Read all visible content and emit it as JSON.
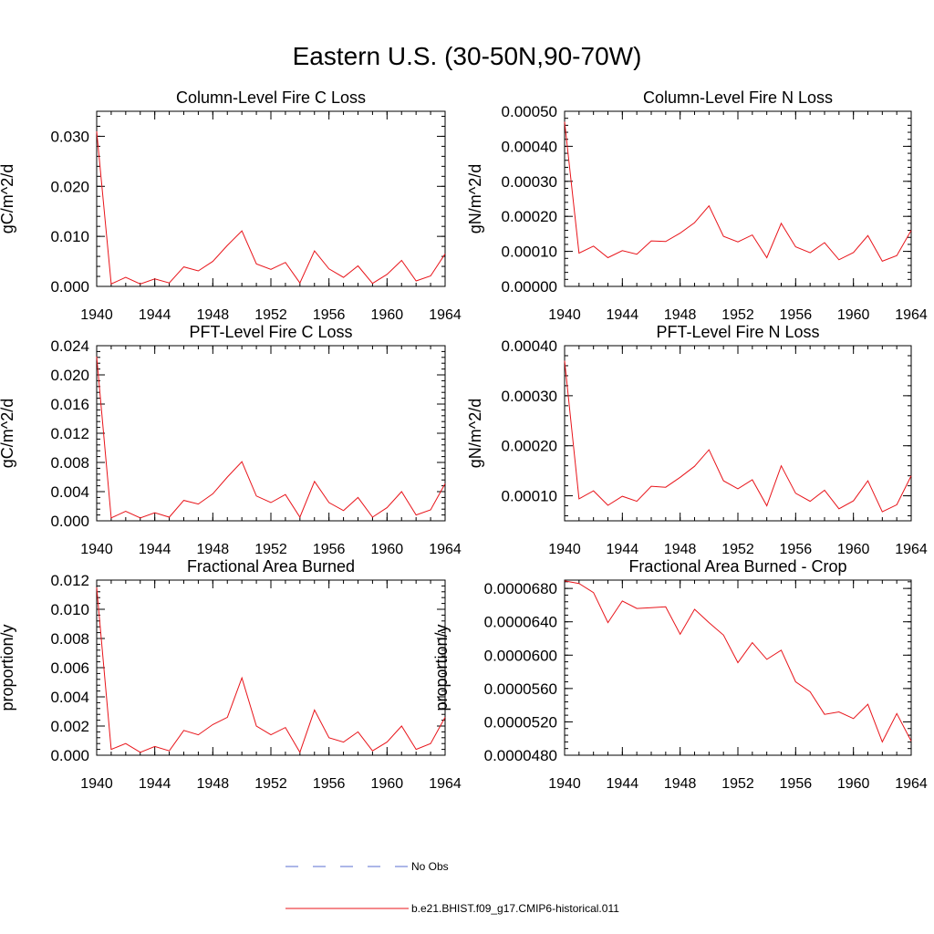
{
  "title": "Eastern U.S. (30-50N,90-70W)",
  "chart_data": [
    {
      "type": "line",
      "title": "Column-Level Fire C Loss",
      "ylabel": "gC/m^2/d",
      "xlim": [
        1940,
        1964
      ],
      "ylim": [
        0,
        0.035
      ],
      "xticks": [
        1940,
        1944,
        1948,
        1952,
        1956,
        1960,
        1964
      ],
      "yticks": [
        0.0,
        0.01,
        0.02,
        0.03
      ],
      "ytick_labels": [
        "0.000",
        "0.010",
        "0.020",
        "0.030"
      ],
      "x": [
        1940,
        1941,
        1942,
        1943,
        1944,
        1945,
        1946,
        1947,
        1948,
        1949,
        1950,
        1951,
        1952,
        1953,
        1954,
        1955,
        1956,
        1957,
        1958,
        1959,
        1960,
        1961,
        1962,
        1963,
        1964
      ],
      "series": [
        {
          "name": "b.e21.BHIST.f09_g17.CMIP6-historical.011",
          "values": [
            0.031,
            0.0005,
            0.0018,
            0.0005,
            0.0015,
            0.0007,
            0.0039,
            0.0031,
            0.005,
            0.0082,
            0.0111,
            0.0045,
            0.0034,
            0.0048,
            0.0007,
            0.0071,
            0.0035,
            0.0018,
            0.0041,
            0.0006,
            0.0024,
            0.0052,
            0.0011,
            0.0021,
            0.0065
          ]
        }
      ]
    },
    {
      "type": "line",
      "title": "Column-Level Fire N Loss",
      "ylabel": "gN/m^2/d",
      "xlim": [
        1940,
        1964
      ],
      "ylim": [
        0,
        0.0005
      ],
      "xticks": [
        1940,
        1944,
        1948,
        1952,
        1956,
        1960,
        1964
      ],
      "yticks": [
        0,
        0.0001,
        0.0002,
        0.0003,
        0.0004,
        0.0005
      ],
      "ytick_labels": [
        "0.00000",
        "0.00010",
        "0.00020",
        "0.00030",
        "0.00040",
        "0.00050"
      ],
      "x": [
        1940,
        1941,
        1942,
        1943,
        1944,
        1945,
        1946,
        1947,
        1948,
        1949,
        1950,
        1951,
        1952,
        1953,
        1954,
        1955,
        1956,
        1957,
        1958,
        1959,
        1960,
        1961,
        1962,
        1963,
        1964
      ],
      "series": [
        {
          "name": "b.e21.BHIST.f09_g17.CMIP6-historical.011",
          "values": [
            0.00047,
            9.5e-05,
            0.000115,
            8.2e-05,
            0.000102,
            9.2e-05,
            0.00013,
            0.000128,
            0.000152,
            0.000182,
            0.00023,
            0.000143,
            0.000127,
            0.000147,
            8.2e-05,
            0.00018,
            0.000113,
            9.6e-05,
            0.000125,
            7.6e-05,
            9.7e-05,
            0.000145,
            7.2e-05,
            8.8e-05,
            0.00016
          ]
        }
      ]
    },
    {
      "type": "line",
      "title": "PFT-Level Fire C Loss",
      "ylabel": "gC/m^2/d",
      "xlim": [
        1940,
        1964
      ],
      "ylim": [
        0,
        0.024
      ],
      "xticks": [
        1940,
        1944,
        1948,
        1952,
        1956,
        1960,
        1964
      ],
      "yticks": [
        0,
        0.004,
        0.008,
        0.012,
        0.016,
        0.02,
        0.024
      ],
      "ytick_labels": [
        "0.000",
        "0.004",
        "0.008",
        "0.012",
        "0.016",
        "0.020",
        "0.024"
      ],
      "x": [
        1940,
        1941,
        1942,
        1943,
        1944,
        1945,
        1946,
        1947,
        1948,
        1949,
        1950,
        1951,
        1952,
        1953,
        1954,
        1955,
        1956,
        1957,
        1958,
        1959,
        1960,
        1961,
        1962,
        1963,
        1964
      ],
      "series": [
        {
          "name": "b.e21.BHIST.f09_g17.CMIP6-historical.011",
          "values": [
            0.0225,
            0.0004,
            0.0013,
            0.0004,
            0.0011,
            0.0005,
            0.0028,
            0.0023,
            0.0037,
            0.006,
            0.0081,
            0.0034,
            0.0025,
            0.0036,
            0.0005,
            0.0054,
            0.0025,
            0.0014,
            0.0032,
            0.0005,
            0.0018,
            0.004,
            0.0008,
            0.0015,
            0.0051
          ]
        }
      ]
    },
    {
      "type": "line",
      "title": "PFT-Level Fire N Loss",
      "ylabel": "gN/m^2/d",
      "xlim": [
        1940,
        1964
      ],
      "ylim": [
        5e-05,
        0.0004
      ],
      "xticks": [
        1940,
        1944,
        1948,
        1952,
        1956,
        1960,
        1964
      ],
      "yticks": [
        0.0001,
        0.0002,
        0.0003,
        0.0004
      ],
      "ytick_labels": [
        "0.00010",
        "0.00020",
        "0.00030",
        "0.00040"
      ],
      "x": [
        1940,
        1941,
        1942,
        1943,
        1944,
        1945,
        1946,
        1947,
        1948,
        1949,
        1950,
        1951,
        1952,
        1953,
        1954,
        1955,
        1956,
        1957,
        1958,
        1959,
        1960,
        1961,
        1962,
        1963,
        1964
      ],
      "series": [
        {
          "name": "b.e21.BHIST.f09_g17.CMIP6-historical.011",
          "values": [
            0.00037,
            9.4e-05,
            0.00011,
            8.1e-05,
            9.9e-05,
            8.9e-05,
            0.000119,
            0.000117,
            0.000137,
            0.000159,
            0.000192,
            0.00013,
            0.000114,
            0.000132,
            8e-05,
            0.00016,
            0.000105,
            8.9e-05,
            0.000111,
            7.4e-05,
            9e-05,
            0.00013,
            6.8e-05,
            8.2e-05,
            0.00014
          ]
        }
      ]
    },
    {
      "type": "line",
      "title": "Fractional Area Burned",
      "ylabel": "proportion/y",
      "xlim": [
        1940,
        1964
      ],
      "ylim": [
        0,
        0.012
      ],
      "xticks": [
        1940,
        1944,
        1948,
        1952,
        1956,
        1960,
        1964
      ],
      "yticks": [
        0,
        0.002,
        0.004,
        0.006,
        0.008,
        0.01,
        0.012
      ],
      "ytick_labels": [
        "0.000",
        "0.002",
        "0.004",
        "0.006",
        "0.008",
        "0.010",
        "0.012"
      ],
      "x": [
        1940,
        1941,
        1942,
        1943,
        1944,
        1945,
        1946,
        1947,
        1948,
        1949,
        1950,
        1951,
        1952,
        1953,
        1954,
        1955,
        1956,
        1957,
        1958,
        1959,
        1960,
        1961,
        1962,
        1963,
        1964
      ],
      "series": [
        {
          "name": "b.e21.BHIST.f09_g17.CMIP6-historical.011",
          "values": [
            0.0115,
            0.0004,
            0.0008,
            0.0002,
            0.0006,
            0.0003,
            0.0017,
            0.0014,
            0.0021,
            0.0026,
            0.0053,
            0.002,
            0.0014,
            0.0019,
            0.0002,
            0.0031,
            0.0012,
            0.0009,
            0.0016,
            0.0003,
            0.0009,
            0.002,
            0.0004,
            0.0008,
            0.0026
          ]
        }
      ]
    },
    {
      "type": "line",
      "title": "Fractional Area Burned - Crop",
      "ylabel": "proportion/y",
      "xlim": [
        1940,
        1964
      ],
      "ylim": [
        4.8e-05,
        6.9e-05
      ],
      "xticks": [
        1940,
        1944,
        1948,
        1952,
        1956,
        1960,
        1964
      ],
      "yticks": [
        4.8e-05,
        5.2e-05,
        5.6e-05,
        6e-05,
        6.4e-05,
        6.8e-05
      ],
      "ytick_labels": [
        "0.0000480",
        "0.0000520",
        "0.0000560",
        "0.0000600",
        "0.0000640",
        "0.0000680"
      ],
      "x": [
        1940,
        1941,
        1942,
        1943,
        1944,
        1945,
        1946,
        1947,
        1948,
        1949,
        1950,
        1951,
        1952,
        1953,
        1954,
        1955,
        1956,
        1957,
        1958,
        1959,
        1960,
        1961,
        1962,
        1963,
        1964
      ],
      "series": [
        {
          "name": "b.e21.BHIST.f09_g17.CMIP6-historical.011",
          "values": [
            6.89e-05,
            6.86e-05,
            6.75e-05,
            6.39e-05,
            6.65e-05,
            6.56e-05,
            6.57e-05,
            6.58e-05,
            6.25e-05,
            6.55e-05,
            6.39e-05,
            6.24e-05,
            5.91e-05,
            6.15e-05,
            5.95e-05,
            6.06e-05,
            5.68e-05,
            5.56e-05,
            5.29e-05,
            5.32e-05,
            5.24e-05,
            5.41e-05,
            4.96e-05,
            5.3e-05,
            4.97e-05
          ]
        }
      ]
    }
  ],
  "legend": [
    {
      "label": "No Obs",
      "color": "#5a6fd0",
      "style": "dashed"
    },
    {
      "label": "b.e21.BHIST.f09_g17.CMIP6-historical.011",
      "color": "#e8141a",
      "style": "solid"
    }
  ],
  "colors": {
    "series": "#e8141a",
    "axis": "#000000"
  }
}
